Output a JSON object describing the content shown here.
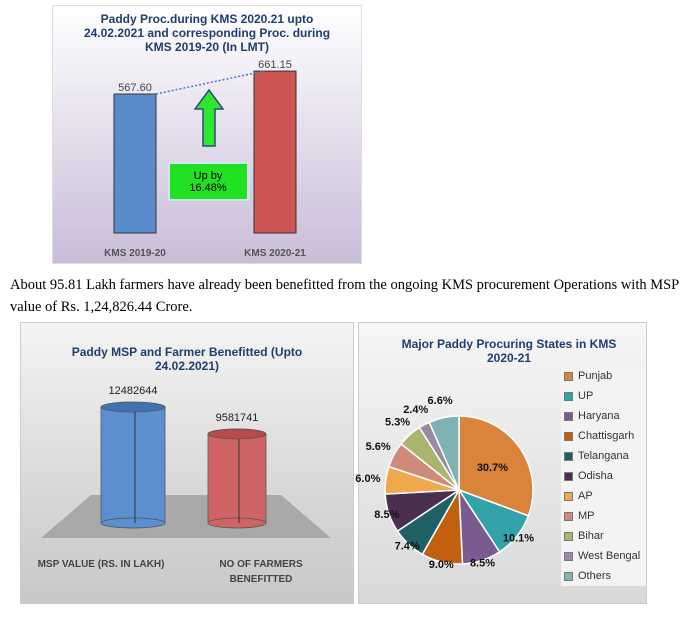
{
  "paragraph": "About 95.81 Lakh farmers have already been benefitted from the ongoing KMS procurement Operations with MSP value of Rs. 1,24,826.44 Crore.",
  "chart_data": [
    {
      "type": "bar",
      "title": "Paddy Proc.during KMS 2020.21 upto 24.02.2021 and corresponding Proc. during  KMS 2019-20  (In LMT)",
      "categories": [
        "KMS 2019-20",
        "KMS 2020-21"
      ],
      "values": [
        567.6,
        661.15
      ],
      "data_labels": [
        "567.60",
        "661.15"
      ],
      "annotation": "Up by 16.48%",
      "annotation_lines": [
        "Up by",
        "16.48%"
      ],
      "colors": [
        "#5a8ccc",
        "#cd5553"
      ]
    },
    {
      "type": "bar",
      "title": "Paddy MSP and Farmer Benefitted (Upto 24.02.2021)",
      "categories": [
        "MSP VALUE (RS. IN LAKH)",
        "NO OF FARMERS BENEFITTED"
      ],
      "category_lines": [
        [
          "MSP VALUE (RS. IN LAKH)"
        ],
        [
          "NO OF FARMERS",
          "BENEFITTED"
        ]
      ],
      "values": [
        12482644,
        9581741
      ],
      "data_labels": [
        "12482644",
        "9581741"
      ],
      "colors": [
        "#5b8fd0",
        "#d06464"
      ]
    },
    {
      "type": "pie",
      "title": "Major Paddy Procuring States in KMS 2020-21",
      "legend": "right",
      "categories": [
        "Punjab",
        "UP",
        "Haryana",
        "Chattisgarh",
        "Telangana",
        "Odisha",
        "AP",
        "MP",
        "Bihar",
        "West Bengal",
        "Others"
      ],
      "values": [
        30.7,
        10.1,
        8.5,
        9.0,
        7.4,
        8.5,
        6.0,
        5.6,
        5.3,
        2.4,
        6.6
      ],
      "data_labels": [
        "30.7%",
        "10.1%",
        "8.5%",
        "9.0%",
        "7.4%",
        "8.5%",
        "6.0%",
        "5.6%",
        "5.3%",
        "2.4%",
        "6.6%"
      ],
      "colors": [
        "#d9843a",
        "#34a2aa",
        "#7b5b8f",
        "#c2600f",
        "#1f6165",
        "#4b304d",
        "#f0a84f",
        "#d08a7c",
        "#a9b56c",
        "#9b8ba1",
        "#7fb2b2"
      ]
    }
  ]
}
